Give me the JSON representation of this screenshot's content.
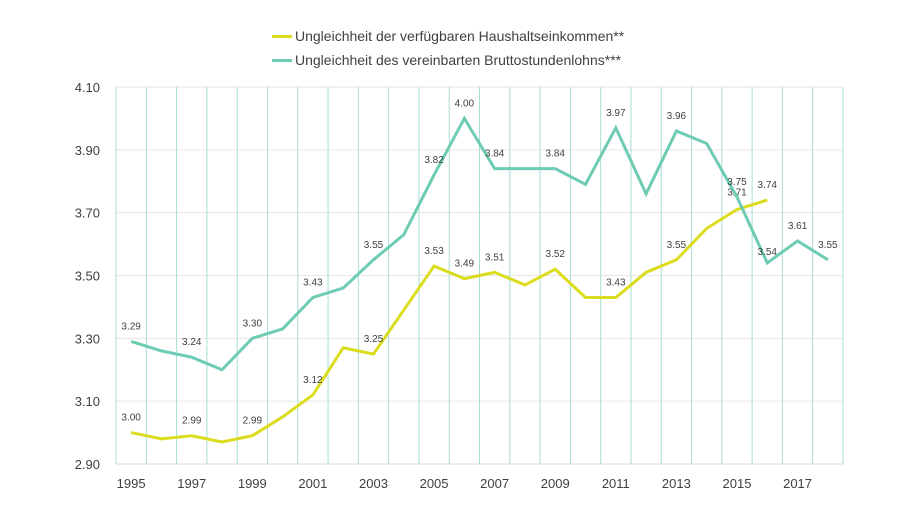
{
  "chart_data": {
    "type": "line",
    "title": "",
    "xlabel": "",
    "ylabel": "",
    "ylim": [
      2.9,
      4.1
    ],
    "yticks": [
      "2.90",
      "3.10",
      "3.30",
      "3.50",
      "3.70",
      "3.90",
      "4.10"
    ],
    "x": [
      1995,
      1996,
      1997,
      1998,
      1999,
      2000,
      2001,
      2002,
      2003,
      2004,
      2005,
      2006,
      2007,
      2008,
      2009,
      2010,
      2011,
      2012,
      2013,
      2014,
      2015,
      2016,
      2017,
      2018
    ],
    "xticklabels": [
      "1995",
      "1997",
      "1999",
      "2001",
      "2003",
      "2005",
      "2007",
      "2009",
      "2011",
      "2013",
      "2015",
      "2017"
    ],
    "grid": "vertical category lines and horizontal lines",
    "legend_position": "top",
    "series": [
      {
        "name": "Ungleichheit der verfügbaren Haushaltseinkommen**",
        "color": "#dcdc1e",
        "values": [
          3.0,
          2.98,
          2.99,
          2.97,
          2.99,
          3.05,
          3.12,
          3.27,
          3.25,
          3.39,
          3.53,
          3.49,
          3.51,
          3.47,
          3.52,
          3.43,
          3.43,
          3.51,
          3.55,
          3.65,
          3.71,
          3.74,
          null,
          null
        ],
        "labels": {
          "1995": "3.00",
          "1997": "2.99",
          "1999": "2.99",
          "2001": "3.12",
          "2003": "3.25",
          "2005": "3.53",
          "2006": "3.49",
          "2007": "3.51",
          "2009": "3.52",
          "2011": "3.43",
          "2013": "3.55",
          "2015": "3.71",
          "2016": "3.74"
        }
      },
      {
        "name": "Ungleichheit des vereinbarten Bruttostundenlohns***",
        "color": "#6ecbb4",
        "values": [
          3.29,
          3.26,
          3.24,
          3.2,
          3.3,
          3.33,
          3.43,
          3.46,
          3.55,
          3.63,
          3.82,
          4.0,
          3.84,
          3.84,
          3.84,
          3.79,
          3.97,
          3.76,
          3.96,
          3.92,
          3.75,
          3.54,
          3.61,
          3.55
        ],
        "labels": {
          "1995": "3.29",
          "1997": "3.24",
          "1999": "3.30",
          "2001": "3.43",
          "2003": "3.55",
          "2005": "3.82",
          "2006": "4.00",
          "2007": "3.84",
          "2009": "3.84",
          "2011": "3.97",
          "2013": "3.96",
          "2015": "3.75",
          "2016": "3.54",
          "2017": "3.61",
          "2018": "3.55"
        }
      }
    ]
  }
}
